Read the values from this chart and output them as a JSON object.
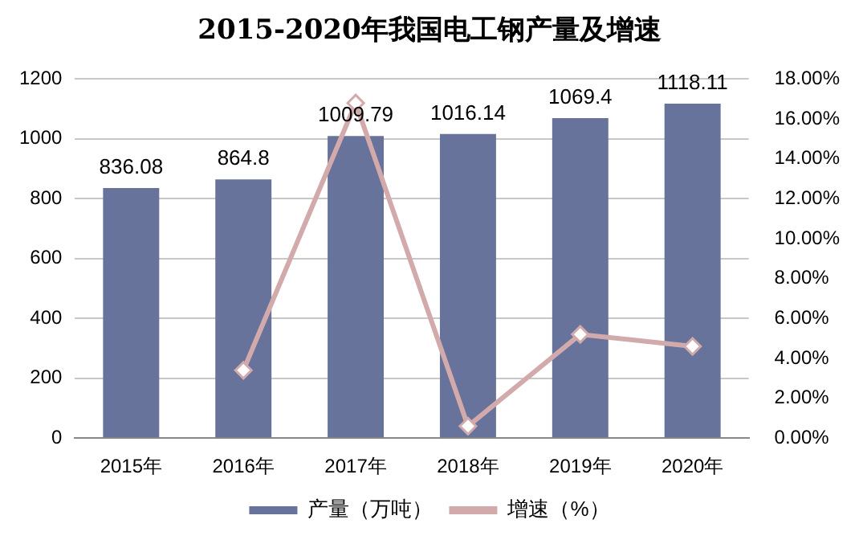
{
  "chart_data": {
    "type": "bar",
    "title": "2015-2020年我国电工钢产量及增速",
    "categories": [
      "2015年",
      "2016年",
      "2017年",
      "2018年",
      "2019年",
      "2020年"
    ],
    "series": [
      {
        "name": "产量（万吨）",
        "color": "#67739a",
        "values": [
          836.08,
          864.8,
          1009.79,
          1016.14,
          1069.4,
          1118.11
        ],
        "value_labels": [
          "836.08",
          "864.8",
          "1009.79",
          "1016.14",
          "1069.4",
          "1118.11"
        ]
      },
      {
        "name": "增速（%）",
        "type": "line",
        "axis": "y2",
        "color": "#d2aaab",
        "marker": "diamond",
        "values": [
          null,
          3.4,
          16.8,
          0.6,
          5.2,
          4.6
        ]
      }
    ],
    "ylim": [
      0,
      1200
    ],
    "yticks": [
      0,
      200,
      400,
      600,
      800,
      1000,
      1200
    ],
    "y2lim": [
      0,
      18
    ],
    "y2ticks": [
      {
        "value": 0,
        "label": "0.00%"
      },
      {
        "value": 2,
        "label": "2.00%"
      },
      {
        "value": 4,
        "label": "4.00%"
      },
      {
        "value": 6,
        "label": "6.00%"
      },
      {
        "value": 8,
        "label": "8.00%"
      },
      {
        "value": 10,
        "label": "10.00%"
      },
      {
        "value": 12,
        "label": "12.00%"
      },
      {
        "value": 14,
        "label": "14.00%"
      },
      {
        "value": 16,
        "label": "16.00%"
      },
      {
        "value": 18,
        "label": "18.00%"
      }
    ],
    "grid": "y",
    "legend": "bottom"
  }
}
